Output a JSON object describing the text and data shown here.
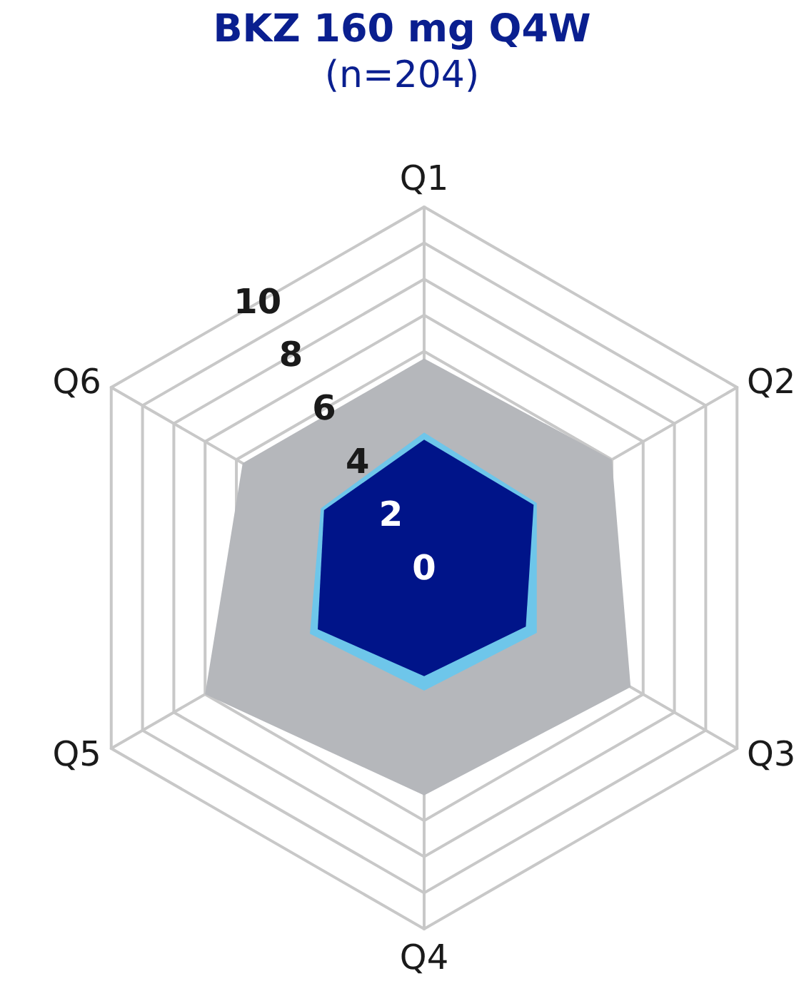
{
  "chart_data": {
    "type": "radar",
    "title": "BKZ 160 mg Q4W",
    "subtitle": "(n=204)",
    "categories": [
      "Q1",
      "Q2",
      "Q3",
      "Q4",
      "Q5",
      "Q6"
    ],
    "series": [
      {
        "color": "#b5b7bb",
        "values": [
          5.8,
          6.0,
          6.6,
          6.3,
          7.0,
          5.8
        ]
      },
      {
        "color": "#6ec6ea",
        "values": [
          3.75,
          3.6,
          3.6,
          3.4,
          3.65,
          3.3
        ]
      },
      {
        "color": "#001489",
        "values": [
          3.55,
          3.5,
          3.25,
          3.0,
          3.4,
          3.2
        ]
      }
    ],
    "ylim": [
      0,
      10
    ],
    "yticks": [
      0,
      2,
      4,
      6,
      8,
      10
    ],
    "grid": true
  }
}
